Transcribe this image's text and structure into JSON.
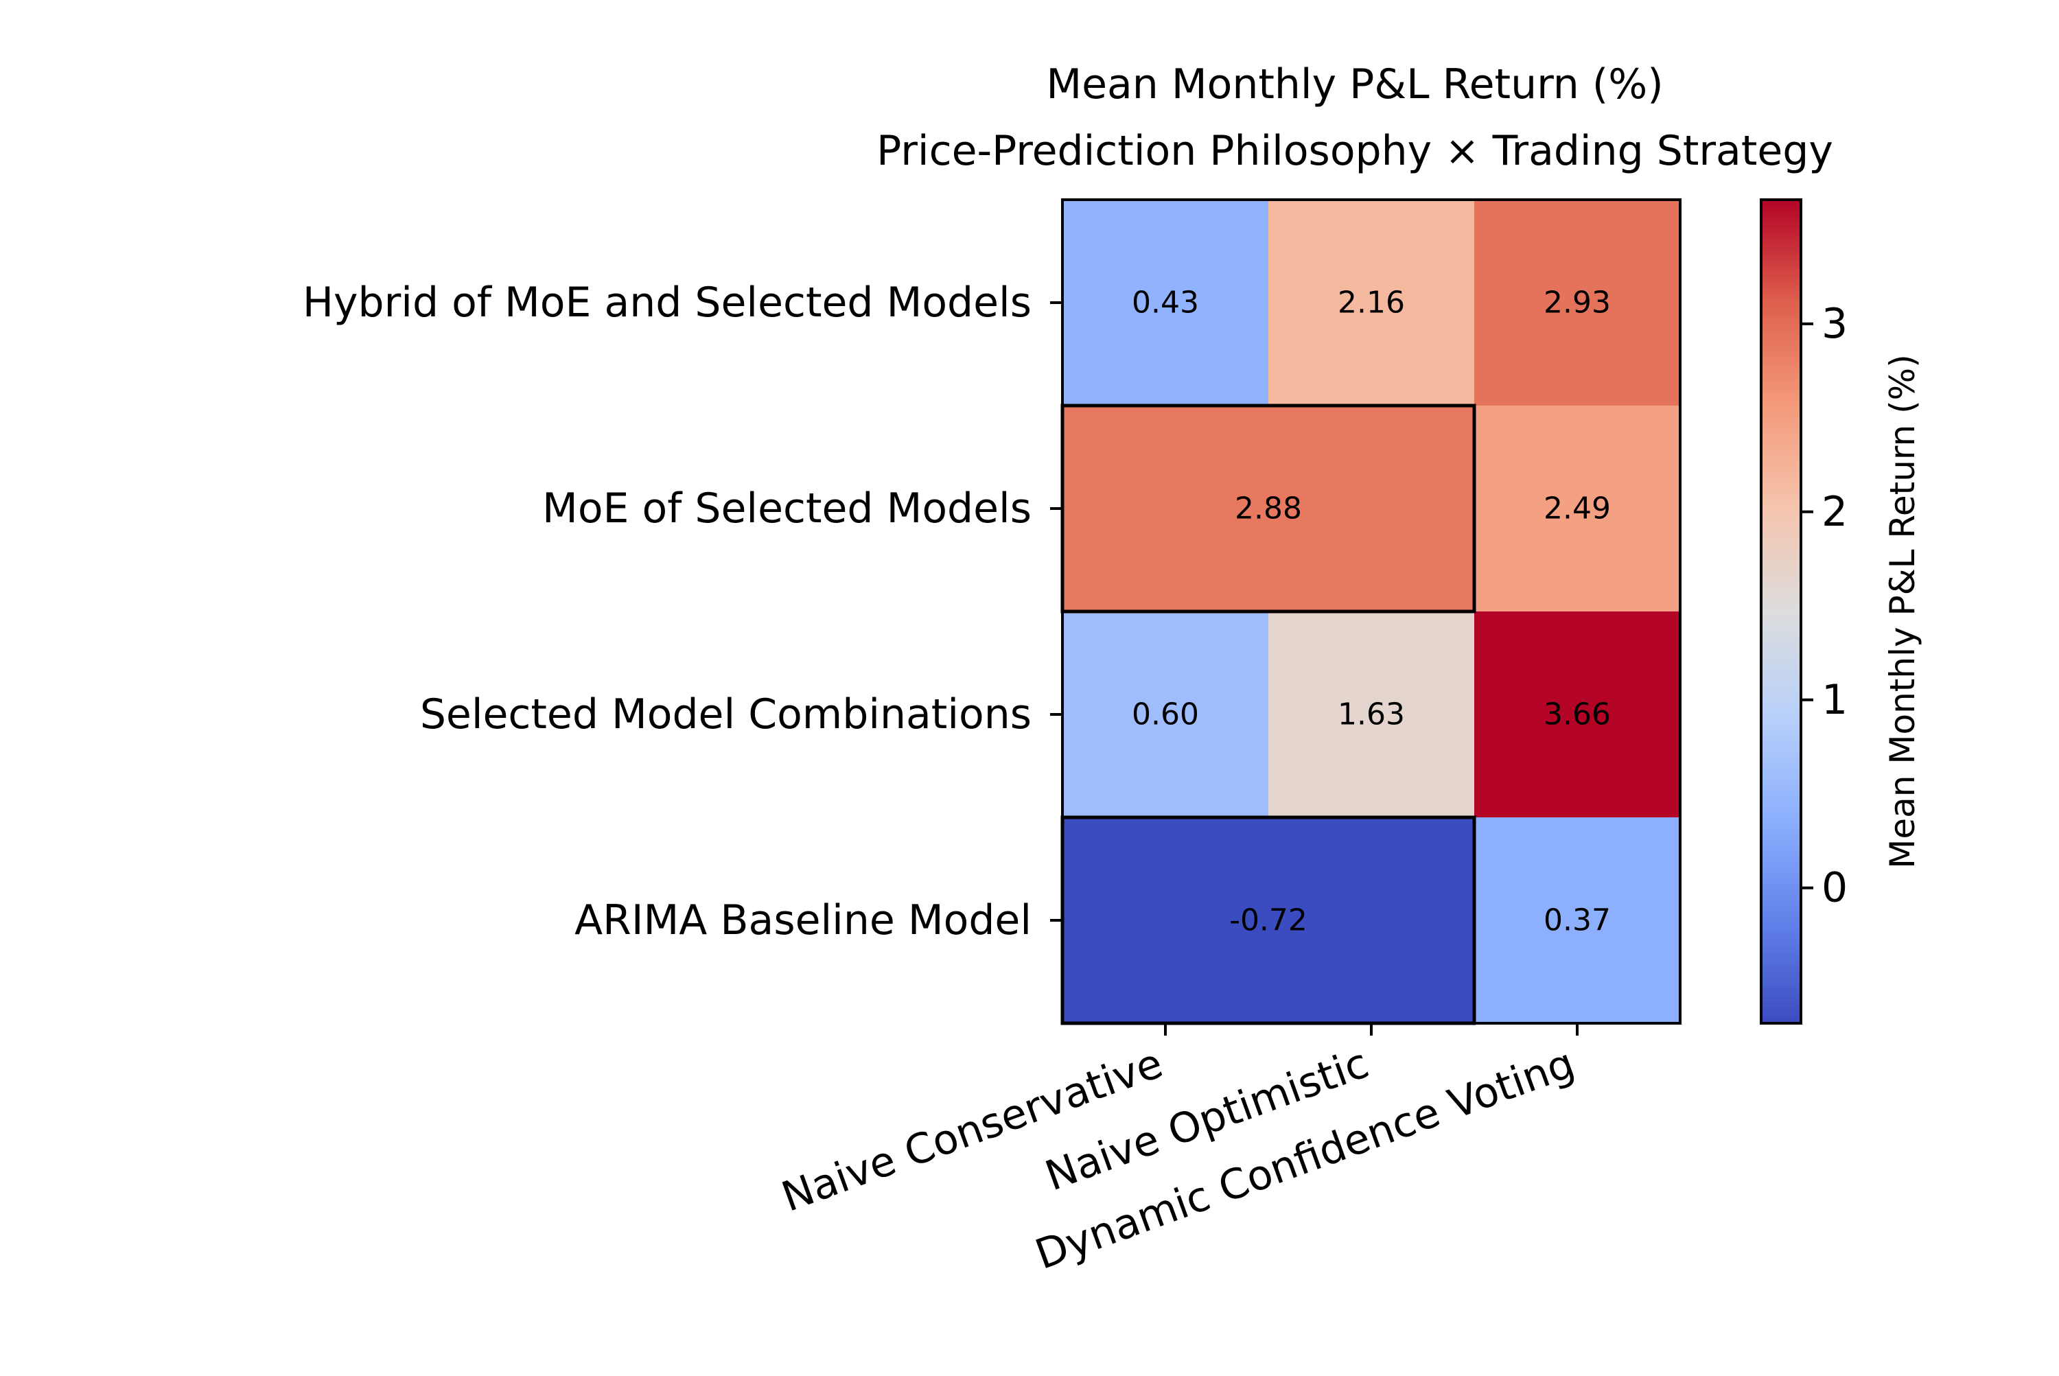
{
  "chart_data": {
    "type": "heatmap",
    "title_lines": [
      "Mean Monthly P&L Return (%)",
      "Price-Prediction Philosophy × Trading Strategy"
    ],
    "rows": [
      "Hybrid of MoE and Selected Models",
      "MoE of Selected Models",
      "Selected Model Combinations",
      "ARIMA Baseline Model"
    ],
    "columns": [
      "Naive Conservative",
      "Naive Optimistic",
      "Dynamic Confidence Voting"
    ],
    "values": [
      [
        0.43,
        2.16,
        2.93
      ],
      [
        2.88,
        2.88,
        2.49
      ],
      [
        0.6,
        1.63,
        3.66
      ],
      [
        -0.72,
        -0.72,
        0.37
      ]
    ],
    "merged_cells": [
      {
        "row": 1,
        "col_start": 0,
        "col_end": 1
      },
      {
        "row": 3,
        "col_start": 0,
        "col_end": 1
      }
    ],
    "colormap": "coolwarm",
    "colorbar": {
      "label": "Mean Monthly P&L Return (%)",
      "vmin": -0.72,
      "vmax": 3.66,
      "ticks": [
        0,
        1,
        2,
        3
      ]
    },
    "grid": false
  }
}
